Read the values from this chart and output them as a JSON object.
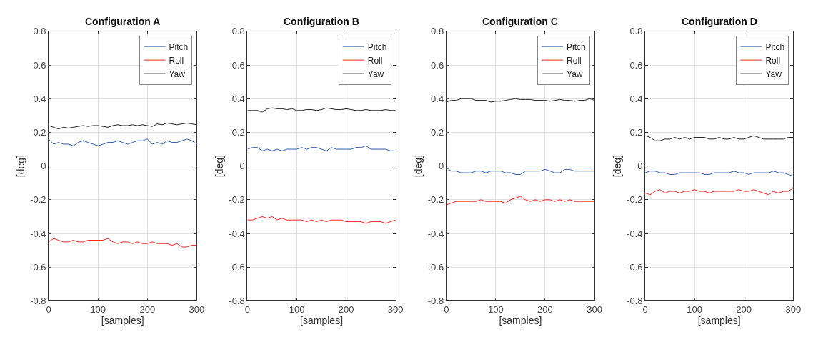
{
  "chart_data": [
    {
      "type": "line",
      "title": "Configuration A",
      "xlabel": "[samples]",
      "ylabel": "[deg]",
      "x": [
        0,
        10,
        20,
        30,
        40,
        50,
        60,
        70,
        80,
        90,
        100,
        110,
        120,
        130,
        140,
        150,
        160,
        170,
        180,
        190,
        200,
        210,
        220,
        230,
        240,
        250,
        260,
        270,
        280,
        290,
        300
      ],
      "xlim": [
        0,
        300
      ],
      "xticks": [
        0,
        100,
        200,
        300
      ],
      "ylim": [
        -0.8,
        0.8
      ],
      "yticks": [
        -0.8,
        -0.6,
        -0.4,
        -0.2,
        0,
        0.2,
        0.4,
        0.6,
        0.8
      ],
      "grid": true,
      "legend": "top right",
      "series": [
        {
          "name": "Pitch",
          "color": "#2a5caa",
          "values": [
            0.16,
            0.13,
            0.14,
            0.13,
            0.13,
            0.12,
            0.14,
            0.15,
            0.14,
            0.13,
            0.12,
            0.13,
            0.14,
            0.14,
            0.15,
            0.14,
            0.13,
            0.14,
            0.15,
            0.15,
            0.16,
            0.13,
            0.14,
            0.13,
            0.15,
            0.14,
            0.14,
            0.15,
            0.16,
            0.15,
            0.13
          ]
        },
        {
          "name": "Roll",
          "color": "#ff2020",
          "values": [
            -0.45,
            -0.43,
            -0.44,
            -0.45,
            -0.45,
            -0.44,
            -0.45,
            -0.45,
            -0.44,
            -0.44,
            -0.44,
            -0.44,
            -0.43,
            -0.45,
            -0.46,
            -0.45,
            -0.45,
            -0.46,
            -0.45,
            -0.46,
            -0.46,
            -0.45,
            -0.46,
            -0.46,
            -0.46,
            -0.47,
            -0.46,
            -0.48,
            -0.48,
            -0.47,
            -0.47
          ]
        },
        {
          "name": "Yaw",
          "color": "#222222",
          "values": [
            0.24,
            0.23,
            0.22,
            0.23,
            0.225,
            0.23,
            0.235,
            0.24,
            0.235,
            0.24,
            0.24,
            0.235,
            0.23,
            0.24,
            0.245,
            0.24,
            0.24,
            0.245,
            0.24,
            0.245,
            0.24,
            0.235,
            0.25,
            0.245,
            0.255,
            0.25,
            0.245,
            0.25,
            0.255,
            0.25,
            0.245
          ]
        }
      ]
    },
    {
      "type": "line",
      "title": "Configuration B",
      "xlabel": "[samples]",
      "ylabel": "[deg]",
      "x": [
        0,
        10,
        20,
        30,
        40,
        50,
        60,
        70,
        80,
        90,
        100,
        110,
        120,
        130,
        140,
        150,
        160,
        170,
        180,
        190,
        200,
        210,
        220,
        230,
        240,
        250,
        260,
        270,
        280,
        290,
        300
      ],
      "xlim": [
        0,
        300
      ],
      "xticks": [
        0,
        100,
        200,
        300
      ],
      "ylim": [
        -0.8,
        0.8
      ],
      "yticks": [
        -0.8,
        -0.6,
        -0.4,
        -0.2,
        0,
        0.2,
        0.4,
        0.6,
        0.8
      ],
      "grid": true,
      "legend": "top right",
      "series": [
        {
          "name": "Pitch",
          "color": "#2a5caa",
          "values": [
            0.1,
            0.11,
            0.11,
            0.09,
            0.1,
            0.09,
            0.1,
            0.09,
            0.1,
            0.1,
            0.1,
            0.11,
            0.1,
            0.11,
            0.11,
            0.1,
            0.09,
            0.11,
            0.1,
            0.1,
            0.1,
            0.1,
            0.11,
            0.11,
            0.12,
            0.1,
            0.1,
            0.1,
            0.1,
            0.09,
            0.09
          ]
        },
        {
          "name": "Roll",
          "color": "#ff2020",
          "values": [
            -0.32,
            -0.32,
            -0.31,
            -0.3,
            -0.31,
            -0.3,
            -0.32,
            -0.31,
            -0.32,
            -0.32,
            -0.32,
            -0.32,
            -0.33,
            -0.32,
            -0.33,
            -0.32,
            -0.33,
            -0.32,
            -0.32,
            -0.32,
            -0.33,
            -0.33,
            -0.33,
            -0.33,
            -0.34,
            -0.33,
            -0.33,
            -0.33,
            -0.34,
            -0.33,
            -0.32
          ]
        },
        {
          "name": "Yaw",
          "color": "#222222",
          "values": [
            0.33,
            0.33,
            0.33,
            0.32,
            0.34,
            0.345,
            0.34,
            0.34,
            0.335,
            0.34,
            0.33,
            0.33,
            0.335,
            0.335,
            0.33,
            0.335,
            0.345,
            0.34,
            0.335,
            0.335,
            0.34,
            0.335,
            0.33,
            0.33,
            0.335,
            0.33,
            0.33,
            0.33,
            0.335,
            0.33,
            0.33
          ]
        }
      ]
    },
    {
      "type": "line",
      "title": "Configuration C",
      "xlabel": "[samples]",
      "ylabel": "[deg]",
      "x": [
        0,
        10,
        20,
        30,
        40,
        50,
        60,
        70,
        80,
        90,
        100,
        110,
        120,
        130,
        140,
        150,
        160,
        170,
        180,
        190,
        200,
        210,
        220,
        230,
        240,
        250,
        260,
        270,
        280,
        290,
        300
      ],
      "xlim": [
        0,
        300
      ],
      "xticks": [
        0,
        100,
        200,
        300
      ],
      "ylim": [
        -0.8,
        0.8
      ],
      "yticks": [
        -0.8,
        -0.6,
        -0.4,
        -0.2,
        0,
        0.2,
        0.4,
        0.6,
        0.8
      ],
      "grid": true,
      "legend": "top right",
      "series": [
        {
          "name": "Pitch",
          "color": "#2a5caa",
          "values": [
            -0.01,
            -0.03,
            -0.03,
            -0.04,
            -0.04,
            -0.04,
            -0.03,
            -0.03,
            -0.04,
            -0.03,
            -0.03,
            -0.03,
            -0.04,
            -0.04,
            -0.05,
            -0.05,
            -0.03,
            -0.03,
            -0.03,
            -0.03,
            -0.02,
            -0.03,
            -0.04,
            -0.04,
            -0.02,
            -0.02,
            -0.03,
            -0.03,
            -0.03,
            -0.03,
            -0.03
          ]
        },
        {
          "name": "Roll",
          "color": "#ff2020",
          "values": [
            -0.23,
            -0.22,
            -0.21,
            -0.21,
            -0.21,
            -0.21,
            -0.21,
            -0.2,
            -0.21,
            -0.21,
            -0.21,
            -0.21,
            -0.22,
            -0.2,
            -0.19,
            -0.18,
            -0.2,
            -0.21,
            -0.2,
            -0.21,
            -0.2,
            -0.2,
            -0.21,
            -0.2,
            -0.21,
            -0.2,
            -0.21,
            -0.21,
            -0.21,
            -0.21,
            -0.21
          ]
        },
        {
          "name": "Yaw",
          "color": "#222222",
          "values": [
            0.38,
            0.39,
            0.39,
            0.4,
            0.4,
            0.4,
            0.39,
            0.39,
            0.39,
            0.38,
            0.385,
            0.385,
            0.39,
            0.395,
            0.4,
            0.395,
            0.395,
            0.395,
            0.39,
            0.39,
            0.39,
            0.385,
            0.39,
            0.395,
            0.39,
            0.39,
            0.385,
            0.39,
            0.39,
            0.4,
            0.39
          ]
        }
      ]
    },
    {
      "type": "line",
      "title": "Configuration D",
      "xlabel": "[samples]",
      "ylabel": "[deg]",
      "x": [
        0,
        10,
        20,
        30,
        40,
        50,
        60,
        70,
        80,
        90,
        100,
        110,
        120,
        130,
        140,
        150,
        160,
        170,
        180,
        190,
        200,
        210,
        220,
        230,
        240,
        250,
        260,
        270,
        280,
        290,
        300
      ],
      "xlim": [
        0,
        300
      ],
      "xticks": [
        0,
        100,
        200,
        300
      ],
      "ylim": [
        -0.8,
        0.8
      ],
      "yticks": [
        -0.8,
        -0.6,
        -0.4,
        -0.2,
        0,
        0.2,
        0.4,
        0.6,
        0.8
      ],
      "grid": true,
      "legend": "top right",
      "series": [
        {
          "name": "Pitch",
          "color": "#2a5caa",
          "values": [
            -0.04,
            -0.03,
            -0.03,
            -0.04,
            -0.04,
            -0.05,
            -0.05,
            -0.04,
            -0.04,
            -0.04,
            -0.04,
            -0.04,
            -0.05,
            -0.05,
            -0.04,
            -0.04,
            -0.04,
            -0.04,
            -0.03,
            -0.04,
            -0.04,
            -0.05,
            -0.04,
            -0.04,
            -0.04,
            -0.04,
            -0.03,
            -0.04,
            -0.04,
            -0.05,
            -0.06
          ]
        },
        {
          "name": "Roll",
          "color": "#ff2020",
          "values": [
            -0.16,
            -0.17,
            -0.15,
            -0.14,
            -0.16,
            -0.15,
            -0.15,
            -0.16,
            -0.15,
            -0.15,
            -0.14,
            -0.15,
            -0.15,
            -0.16,
            -0.15,
            -0.15,
            -0.15,
            -0.15,
            -0.15,
            -0.14,
            -0.15,
            -0.15,
            -0.14,
            -0.15,
            -0.16,
            -0.17,
            -0.15,
            -0.16,
            -0.15,
            -0.15,
            -0.13
          ]
        },
        {
          "name": "Yaw",
          "color": "#222222",
          "values": [
            0.18,
            0.17,
            0.15,
            0.15,
            0.16,
            0.16,
            0.17,
            0.16,
            0.17,
            0.16,
            0.17,
            0.17,
            0.17,
            0.16,
            0.16,
            0.17,
            0.16,
            0.16,
            0.17,
            0.16,
            0.16,
            0.17,
            0.18,
            0.17,
            0.16,
            0.16,
            0.16,
            0.16,
            0.16,
            0.17,
            0.17
          ]
        }
      ]
    }
  ]
}
